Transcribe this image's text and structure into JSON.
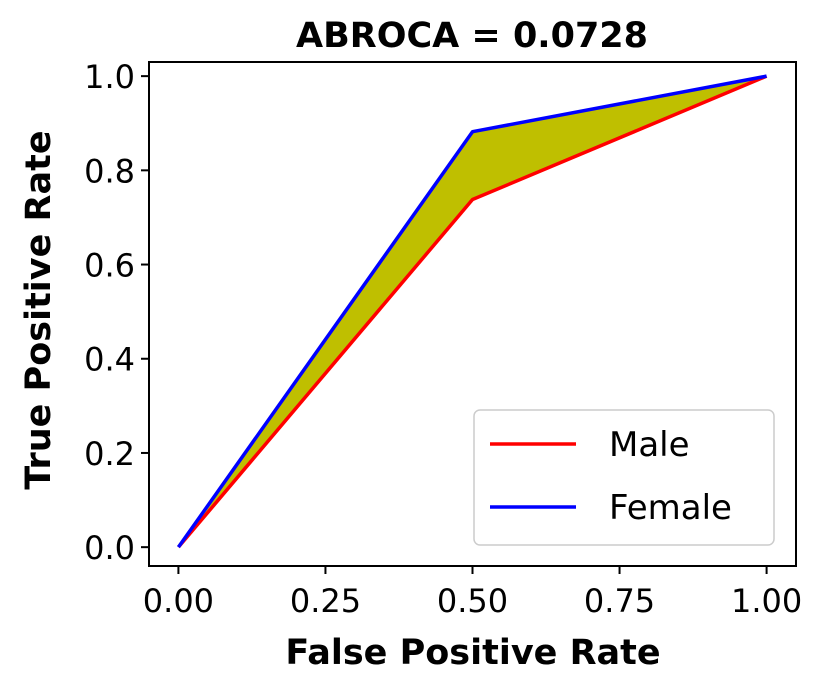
{
  "chart_data": {
    "type": "line",
    "title": "ABROCA = 0.0728",
    "xlabel": "False Positive Rate",
    "ylabel": "True Positive Rate",
    "xlim": [
      -0.05,
      1.05
    ],
    "ylim": [
      -0.04,
      1.03
    ],
    "x_ticks": [
      0.0,
      0.25,
      0.5,
      0.75,
      1.0
    ],
    "x_tick_labels": [
      "0.00",
      "0.25",
      "0.50",
      "0.75",
      "1.00"
    ],
    "y_ticks": [
      0.0,
      0.2,
      0.4,
      0.6,
      0.8,
      1.0
    ],
    "y_tick_labels": [
      "0.0",
      "0.2",
      "0.4",
      "0.6",
      "0.8",
      "1.0"
    ],
    "grid": false,
    "legend_position": "lower-right",
    "fill_between": {
      "color": "#bfbf00",
      "between": [
        "Male",
        "Female"
      ]
    },
    "series": [
      {
        "name": "Male",
        "color": "#ff0000",
        "x": [
          0.0,
          0.5,
          1.0
        ],
        "y": [
          0.0,
          0.738,
          1.0
        ]
      },
      {
        "name": "Female",
        "color": "#0000ff",
        "x": [
          0.0,
          0.5,
          1.0
        ],
        "y": [
          0.0,
          0.882,
          1.0
        ]
      }
    ]
  }
}
